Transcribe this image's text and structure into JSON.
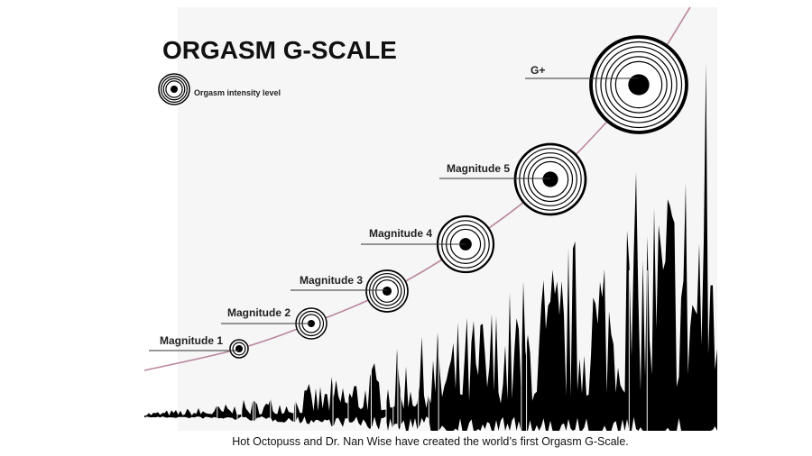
{
  "header": {
    "title": "ORGASM G-SCALE"
  },
  "legend": {
    "label": "Orgasm intensity level"
  },
  "levels": [
    {
      "label": "Magnitude 1"
    },
    {
      "label": "Magnitude 2"
    },
    {
      "label": "Magnitude 3"
    },
    {
      "label": "Magnitude 4"
    },
    {
      "label": "Magnitude 5"
    },
    {
      "label": "G+"
    }
  ],
  "caption": "Hot Octopuss and Dr. Nan Wise have created the world’s first Orgasm G-Scale."
}
